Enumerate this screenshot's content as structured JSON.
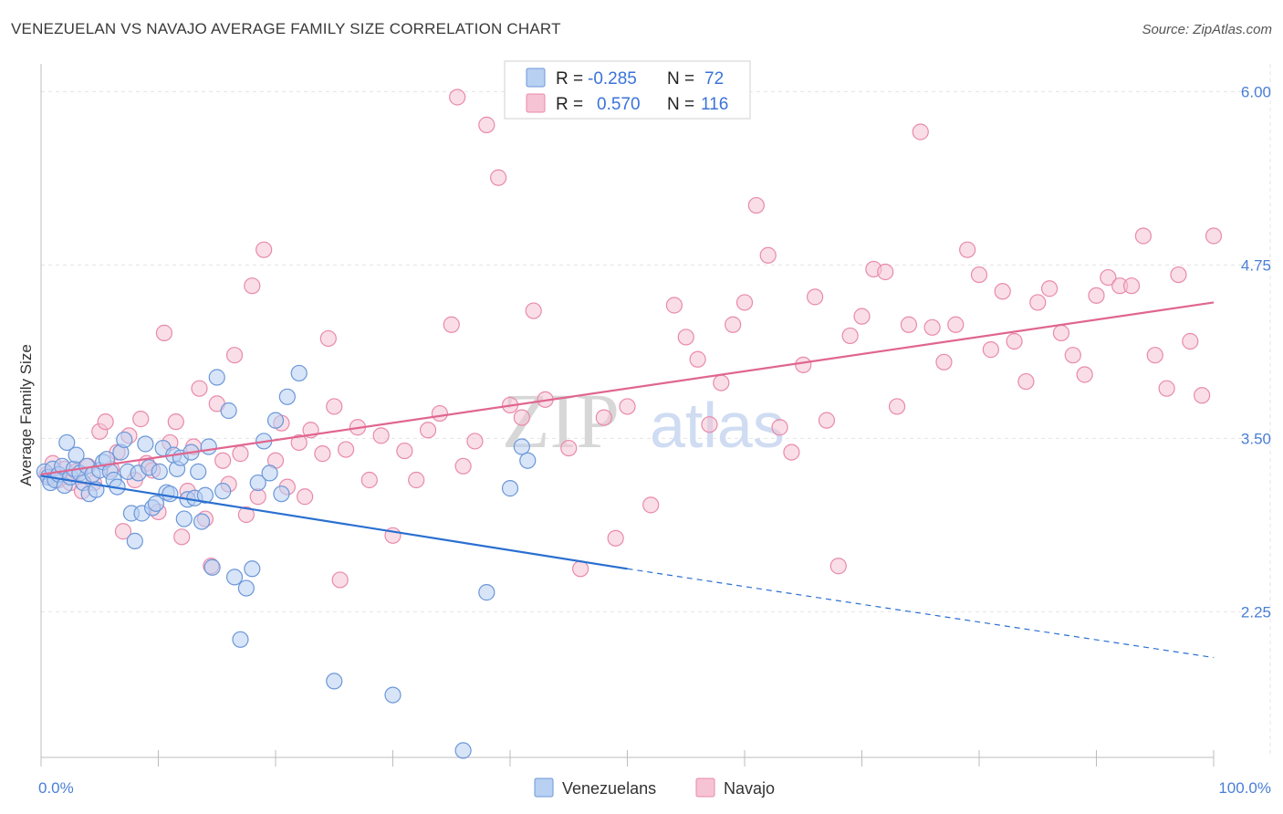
{
  "title": "VENEZUELAN VS NAVAJO AVERAGE FAMILY SIZE CORRELATION CHART",
  "source": "Source: ZipAtlas.com",
  "watermark": {
    "zip": "ZIP",
    "atlas": "atlas"
  },
  "legend": {
    "r_label": "R =",
    "n_label": "N =",
    "entries": [
      {
        "r": "-0.285",
        "n": "72"
      },
      {
        "r": "0.570",
        "n": "116"
      }
    ]
  },
  "colors": {
    "venezuelans_fill": "#b8d0f2",
    "venezuelans_stroke": "#6b97d8",
    "venezuelans_line": "#2a6fd0",
    "navajo_fill": "#f6c3d4",
    "navajo_stroke": "#e88aab",
    "navajo_line": "#e0668f",
    "tick": "#4a7fd6"
  },
  "chart_data": {
    "type": "scatter",
    "title": "VENEZUELAN VS NAVAJO AVERAGE FAMILY SIZE CORRELATION CHART",
    "xlabel": "",
    "ylabel": "Average Family Size",
    "xlim": [
      0,
      100
    ],
    "ylim": [
      1.2,
      6.2
    ],
    "x_tick_labels": [
      "0.0%",
      "100.0%"
    ],
    "y_ticks": [
      2.25,
      3.5,
      4.75,
      6.0
    ],
    "y_tick_labels": [
      "2.25",
      "3.50",
      "4.75",
      "6.00"
    ],
    "grid": true,
    "legend_position": "top-center",
    "series": [
      {
        "name": "Venezuelans",
        "r": -0.285,
        "n": 72,
        "trend": {
          "x0": 0,
          "y0": 3.23,
          "x1": 50,
          "y1": 2.56,
          "dashed_to_x": 100,
          "dashed_to_y": 1.92
        },
        "points": [
          [
            0.3,
            3.26
          ],
          [
            0.6,
            3.22
          ],
          [
            0.8,
            3.18
          ],
          [
            1.0,
            3.28
          ],
          [
            1.2,
            3.2
          ],
          [
            1.5,
            3.24
          ],
          [
            1.8,
            3.3
          ],
          [
            2.0,
            3.16
          ],
          [
            2.2,
            3.47
          ],
          [
            2.5,
            3.22
          ],
          [
            2.8,
            3.28
          ],
          [
            3.0,
            3.38
          ],
          [
            3.3,
            3.25
          ],
          [
            3.6,
            3.18
          ],
          [
            3.9,
            3.3
          ],
          [
            4.1,
            3.1
          ],
          [
            4.4,
            3.24
          ],
          [
            4.7,
            3.13
          ],
          [
            5.0,
            3.27
          ],
          [
            5.3,
            3.33
          ],
          [
            5.6,
            3.35
          ],
          [
            5.9,
            3.26
          ],
          [
            6.2,
            3.2
          ],
          [
            6.5,
            3.15
          ],
          [
            6.8,
            3.4
          ],
          [
            7.1,
            3.49
          ],
          [
            7.4,
            3.26
          ],
          [
            7.7,
            2.96
          ],
          [
            8.0,
            2.76
          ],
          [
            8.3,
            3.25
          ],
          [
            8.6,
            2.96
          ],
          [
            8.9,
            3.46
          ],
          [
            9.2,
            3.29
          ],
          [
            9.5,
            3.0
          ],
          [
            9.8,
            3.03
          ],
          [
            10.1,
            3.26
          ],
          [
            10.4,
            3.43
          ],
          [
            10.7,
            3.11
          ],
          [
            11.0,
            3.1
          ],
          [
            11.3,
            3.38
          ],
          [
            11.6,
            3.28
          ],
          [
            11.9,
            3.36
          ],
          [
            12.2,
            2.92
          ],
          [
            12.5,
            3.06
          ],
          [
            12.8,
            3.4
          ],
          [
            13.1,
            3.07
          ],
          [
            13.4,
            3.26
          ],
          [
            13.7,
            2.9
          ],
          [
            14.0,
            3.09
          ],
          [
            14.3,
            3.44
          ],
          [
            14.6,
            2.57
          ],
          [
            15.0,
            3.94
          ],
          [
            15.5,
            3.12
          ],
          [
            16.0,
            3.7
          ],
          [
            16.5,
            2.5
          ],
          [
            17.0,
            2.05
          ],
          [
            17.5,
            2.42
          ],
          [
            18.0,
            2.56
          ],
          [
            18.5,
            3.18
          ],
          [
            19.0,
            3.48
          ],
          [
            19.5,
            3.25
          ],
          [
            20.0,
            3.63
          ],
          [
            20.5,
            3.1
          ],
          [
            21.0,
            3.8
          ],
          [
            22.0,
            3.97
          ],
          [
            25.0,
            1.75
          ],
          [
            30.0,
            1.65
          ],
          [
            38.0,
            2.39
          ],
          [
            40.0,
            3.14
          ],
          [
            41.0,
            3.44
          ],
          [
            41.5,
            3.34
          ],
          [
            36.0,
            1.25
          ]
        ]
      },
      {
        "name": "Navajo",
        "r": 0.57,
        "n": 116,
        "trend": {
          "x0": 0,
          "y0": 3.24,
          "x1": 100,
          "y1": 4.48
        },
        "points": [
          [
            0.5,
            3.24
          ],
          [
            1.0,
            3.32
          ],
          [
            1.5,
            3.2
          ],
          [
            2.0,
            3.28
          ],
          [
            2.5,
            3.18
          ],
          [
            3.0,
            3.26
          ],
          [
            3.5,
            3.12
          ],
          [
            4.0,
            3.3
          ],
          [
            4.5,
            3.18
          ],
          [
            5.0,
            3.55
          ],
          [
            5.5,
            3.62
          ],
          [
            6.0,
            3.28
          ],
          [
            6.5,
            3.4
          ],
          [
            7.0,
            2.83
          ],
          [
            7.5,
            3.52
          ],
          [
            8.0,
            3.2
          ],
          [
            8.5,
            3.64
          ],
          [
            9.0,
            3.32
          ],
          [
            9.5,
            3.27
          ],
          [
            10.0,
            2.97
          ],
          [
            10.5,
            4.26
          ],
          [
            11.0,
            3.47
          ],
          [
            11.5,
            3.62
          ],
          [
            12.0,
            2.79
          ],
          [
            12.5,
            3.12
          ],
          [
            13.0,
            3.44
          ],
          [
            13.5,
            3.86
          ],
          [
            14.0,
            2.92
          ],
          [
            14.5,
            2.58
          ],
          [
            15.0,
            3.75
          ],
          [
            15.5,
            3.34
          ],
          [
            16.0,
            3.17
          ],
          [
            16.5,
            4.1
          ],
          [
            17.0,
            3.39
          ],
          [
            17.5,
            2.95
          ],
          [
            18.0,
            4.6
          ],
          [
            18.5,
            3.08
          ],
          [
            19.0,
            4.86
          ],
          [
            20.0,
            3.34
          ],
          [
            20.5,
            3.61
          ],
          [
            21.0,
            3.15
          ],
          [
            22.0,
            3.47
          ],
          [
            22.5,
            3.08
          ],
          [
            23.0,
            3.56
          ],
          [
            24.0,
            3.39
          ],
          [
            24.5,
            4.22
          ],
          [
            25.0,
            3.73
          ],
          [
            25.5,
            2.48
          ],
          [
            26.0,
            3.42
          ],
          [
            27.0,
            3.58
          ],
          [
            28.0,
            3.2
          ],
          [
            29.0,
            3.52
          ],
          [
            30.0,
            2.8
          ],
          [
            31.0,
            3.41
          ],
          [
            32.0,
            3.2
          ],
          [
            33.0,
            3.56
          ],
          [
            34.0,
            3.68
          ],
          [
            35.0,
            4.32
          ],
          [
            35.5,
            5.96
          ],
          [
            36.0,
            3.3
          ],
          [
            37.0,
            3.48
          ],
          [
            38.0,
            5.76
          ],
          [
            39.0,
            5.38
          ],
          [
            40.0,
            3.74
          ],
          [
            41.0,
            3.65
          ],
          [
            42.0,
            4.42
          ],
          [
            43.0,
            3.78
          ],
          [
            45.0,
            3.43
          ],
          [
            46.0,
            2.56
          ],
          [
            48.0,
            3.65
          ],
          [
            49.0,
            2.78
          ],
          [
            50.0,
            3.73
          ],
          [
            52.0,
            3.02
          ],
          [
            54.0,
            4.46
          ],
          [
            55.0,
            4.23
          ],
          [
            56.0,
            4.07
          ],
          [
            57.0,
            3.6
          ],
          [
            58.0,
            3.9
          ],
          [
            59.0,
            4.32
          ],
          [
            60.0,
            4.48
          ],
          [
            61.0,
            5.18
          ],
          [
            62.0,
            4.82
          ],
          [
            63.0,
            3.58
          ],
          [
            64.0,
            3.4
          ],
          [
            65.0,
            4.03
          ],
          [
            66.0,
            4.52
          ],
          [
            67.0,
            3.63
          ],
          [
            68.0,
            2.58
          ],
          [
            69.0,
            4.24
          ],
          [
            70.0,
            4.38
          ],
          [
            71.0,
            4.72
          ],
          [
            72.0,
            4.7
          ],
          [
            73.0,
            3.73
          ],
          [
            74.0,
            4.32
          ],
          [
            75.0,
            5.71
          ],
          [
            76.0,
            4.3
          ],
          [
            77.0,
            4.05
          ],
          [
            78.0,
            4.32
          ],
          [
            79.0,
            4.86
          ],
          [
            80.0,
            4.68
          ],
          [
            81.0,
            4.14
          ],
          [
            82.0,
            4.56
          ],
          [
            83.0,
            4.2
          ],
          [
            84.0,
            3.91
          ],
          [
            85.0,
            4.48
          ],
          [
            86.0,
            4.58
          ],
          [
            87.0,
            4.26
          ],
          [
            88.0,
            4.1
          ],
          [
            89.0,
            3.96
          ],
          [
            90.0,
            4.53
          ],
          [
            91.0,
            4.66
          ],
          [
            92.0,
            4.6
          ],
          [
            93.0,
            4.6
          ],
          [
            94.0,
            4.96
          ],
          [
            95.0,
            4.1
          ],
          [
            96.0,
            3.86
          ],
          [
            97.0,
            4.68
          ],
          [
            98.0,
            4.2
          ],
          [
            99.0,
            3.81
          ],
          [
            100.0,
            4.96
          ]
        ]
      }
    ]
  }
}
